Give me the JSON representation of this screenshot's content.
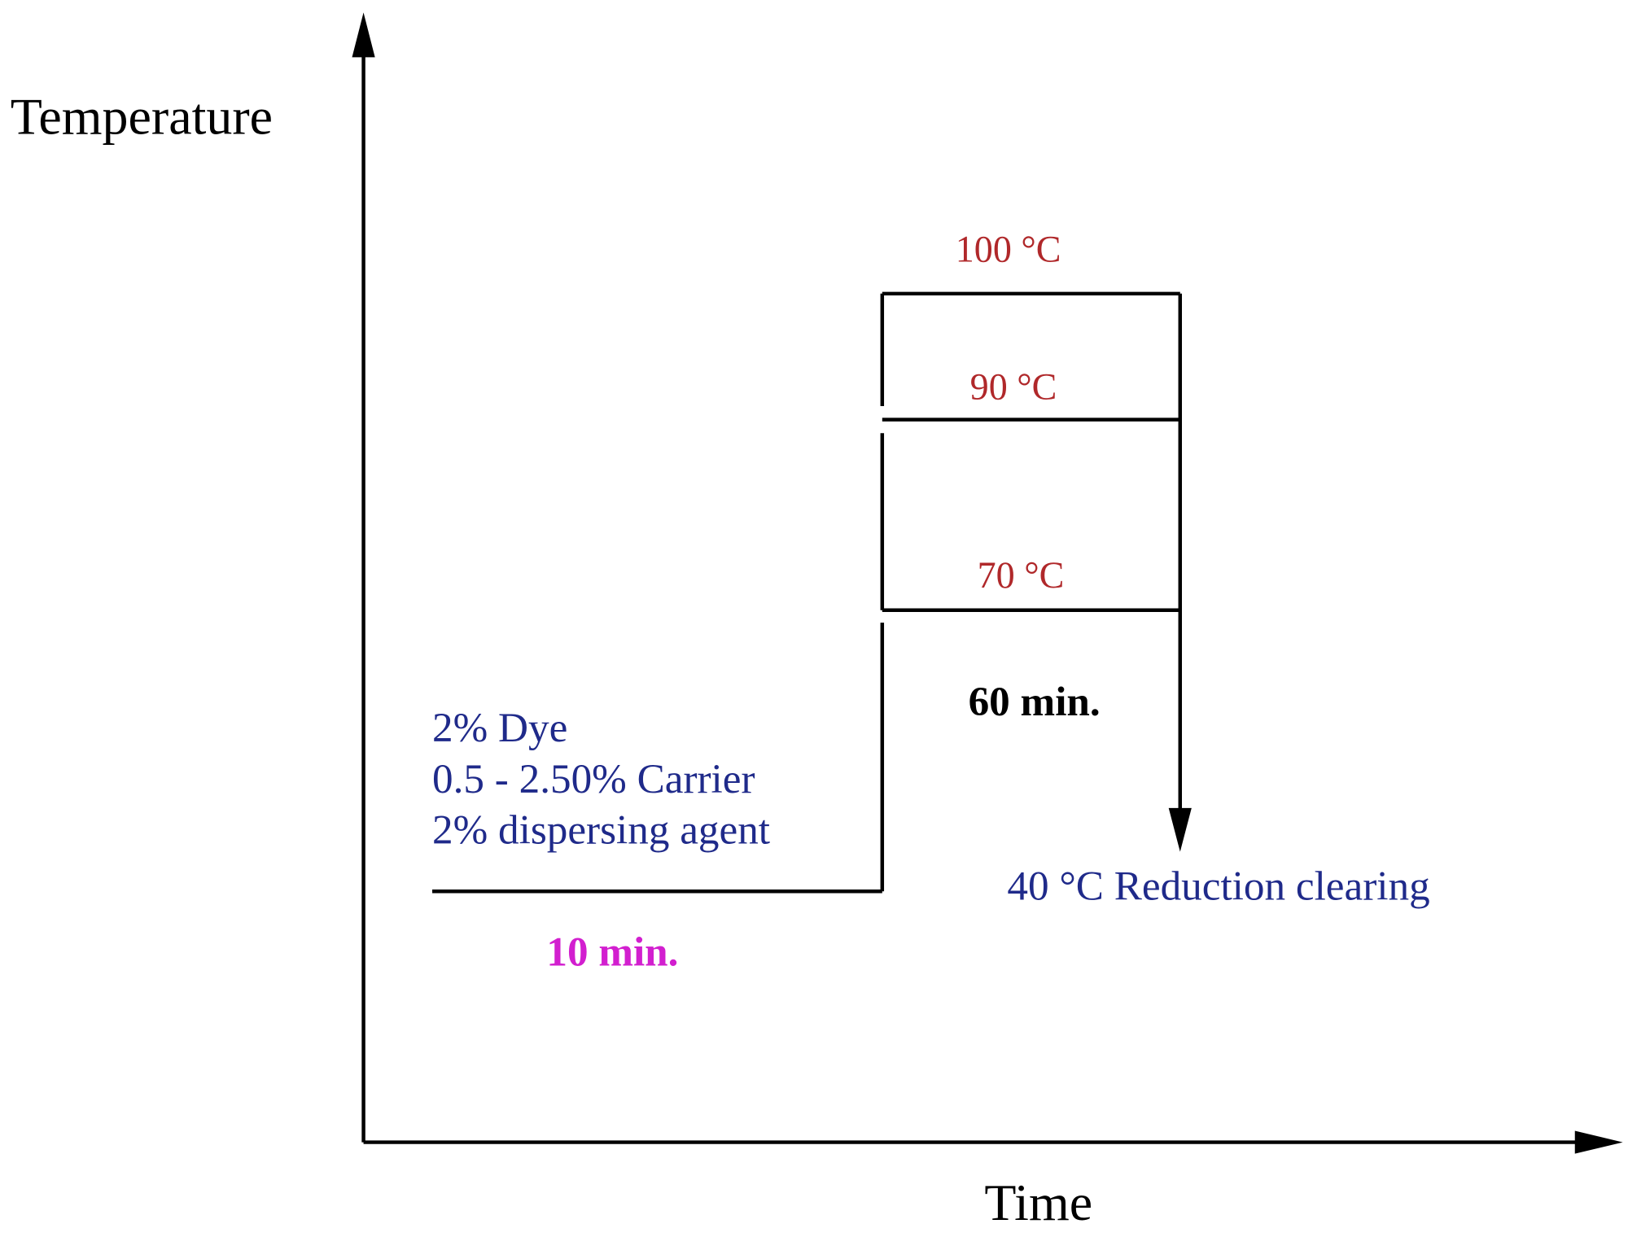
{
  "axes": {
    "y_label": "Temperature",
    "x_label": "Time"
  },
  "temperatures": [
    "100 °C",
    "90 °C",
    "70 °C"
  ],
  "durations": {
    "hold": "60 min.",
    "initial": "10 min."
  },
  "recipe": [
    "2% Dye",
    "0.5 - 2.50% Carrier",
    "2% dispersing agent"
  ],
  "final_step": "40 °C Reduction clearing"
}
